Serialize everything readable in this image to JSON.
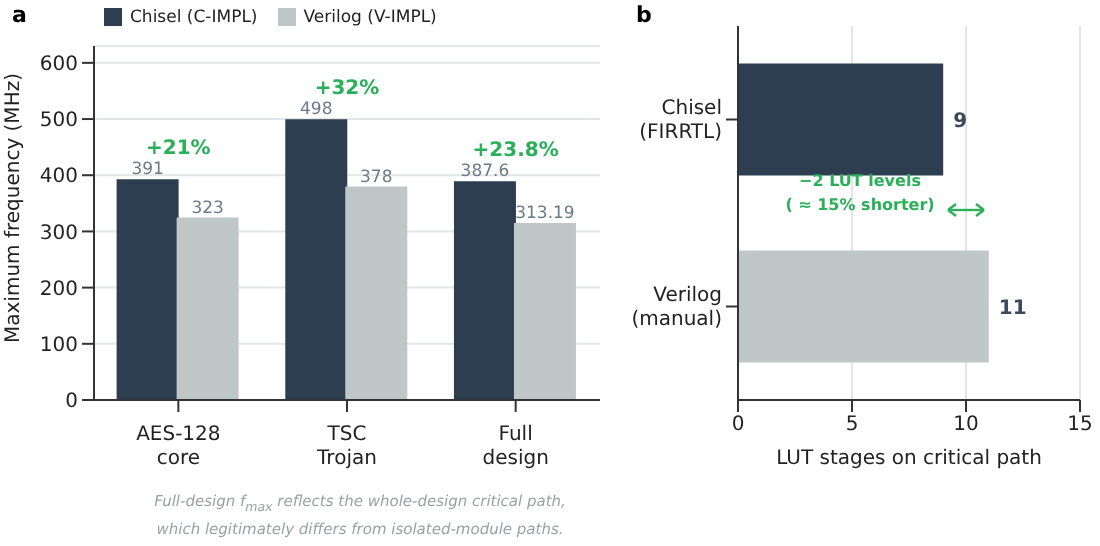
{
  "chart_data": [
    {
      "type": "bar",
      "title": "a",
      "ylabel": "Maximum frequency (MHz)",
      "categories": [
        "AES-128\ncore",
        "TSC\nTrojan",
        "Full\ndesign"
      ],
      "series": [
        {
          "name": "Chisel (C-IMPL)",
          "color": "#2d3e50",
          "values": [
            391,
            498,
            387.6
          ]
        },
        {
          "name": "Verilog (V-IMPL)",
          "color": "#bfc8c6",
          "values": [
            323,
            378,
            313.19
          ]
        }
      ],
      "ylim": [
        0,
        630
      ],
      "yticks": [
        0,
        100,
        200,
        300,
        400,
        500,
        600
      ],
      "grid": "y",
      "legend": "top left",
      "data_labels": true,
      "annotations": [
        "+21%",
        "+32%",
        "+23.8%",
        "Full-design f$_{max}$ reflects the whole-design critical path,\nwhich legitimately differs from isolated-module paths."
      ]
    },
    {
      "type": "bar",
      "title": "b",
      "orientation": "horizontal",
      "xlabel": "LUT stages on critical path",
      "categories": [
        "Chisel\n(FIRRTL)",
        "Verilog\n(manual)"
      ],
      "values": [
        9,
        11
      ],
      "colors": [
        "#2d3e50",
        "#bfc8c6"
      ],
      "xlim": [
        0,
        15
      ],
      "xticks": [
        0,
        5,
        10,
        15
      ],
      "grid": "x",
      "data_labels": true,
      "annotations": [
        "−2 LUT levels\n( ≈ 15% shorter)"
      ]
    }
  ]
}
